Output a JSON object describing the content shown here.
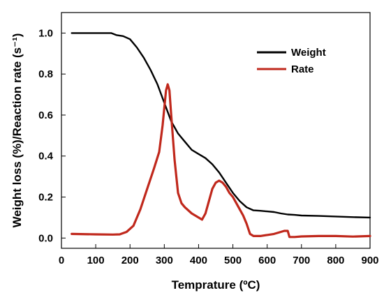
{
  "chart_data": {
    "type": "line",
    "title": "",
    "xlabel": "Temprature (ºC)",
    "ylabel": "Weight loss (%)/Reaction rate (s⁻¹)",
    "xlim": [
      0,
      900
    ],
    "ylim": [
      -0.05,
      1.1
    ],
    "x_ticks": [
      0,
      100,
      200,
      300,
      400,
      500,
      600,
      700,
      800,
      900
    ],
    "y_ticks": [
      0.0,
      0.2,
      0.4,
      0.6,
      0.8,
      1.0
    ],
    "grid": false,
    "legend_position": "top-right",
    "series": [
      {
        "name": "Weight",
        "color": "#000000",
        "x": [
          30,
          100,
          145,
          160,
          180,
          200,
          220,
          240,
          260,
          280,
          300,
          320,
          340,
          360,
          380,
          400,
          420,
          440,
          460,
          480,
          500,
          520,
          540,
          560,
          580,
          600,
          620,
          640,
          660,
          680,
          700,
          750,
          800,
          850,
          900
        ],
        "y": [
          1.0,
          1.0,
          1.0,
          0.99,
          0.985,
          0.97,
          0.93,
          0.88,
          0.82,
          0.75,
          0.66,
          0.57,
          0.51,
          0.47,
          0.43,
          0.41,
          0.39,
          0.36,
          0.32,
          0.27,
          0.22,
          0.18,
          0.15,
          0.135,
          0.133,
          0.13,
          0.127,
          0.12,
          0.115,
          0.113,
          0.11,
          0.108,
          0.105,
          0.102,
          0.1
        ]
      },
      {
        "name": "Rate",
        "color": "#c0281c",
        "x": [
          30,
          100,
          150,
          170,
          190,
          210,
          230,
          250,
          270,
          285,
          295,
          305,
          310,
          315,
          320,
          330,
          340,
          350,
          360,
          380,
          400,
          410,
          420,
          430,
          440,
          450,
          460,
          470,
          480,
          490,
          500,
          510,
          520,
          530,
          540,
          550,
          560,
          580,
          600,
          620,
          640,
          650,
          660,
          665,
          680,
          700,
          750,
          800,
          850,
          900
        ],
        "y": [
          0.02,
          0.018,
          0.017,
          0.018,
          0.03,
          0.06,
          0.14,
          0.24,
          0.34,
          0.42,
          0.55,
          0.72,
          0.75,
          0.72,
          0.6,
          0.38,
          0.22,
          0.17,
          0.15,
          0.12,
          0.1,
          0.09,
          0.12,
          0.18,
          0.24,
          0.27,
          0.28,
          0.27,
          0.25,
          0.22,
          0.2,
          0.17,
          0.14,
          0.11,
          0.07,
          0.02,
          0.01,
          0.01,
          0.015,
          0.02,
          0.03,
          0.035,
          0.035,
          0.005,
          0.005,
          0.008,
          0.01,
          0.01,
          0.007,
          0.01
        ]
      }
    ]
  }
}
